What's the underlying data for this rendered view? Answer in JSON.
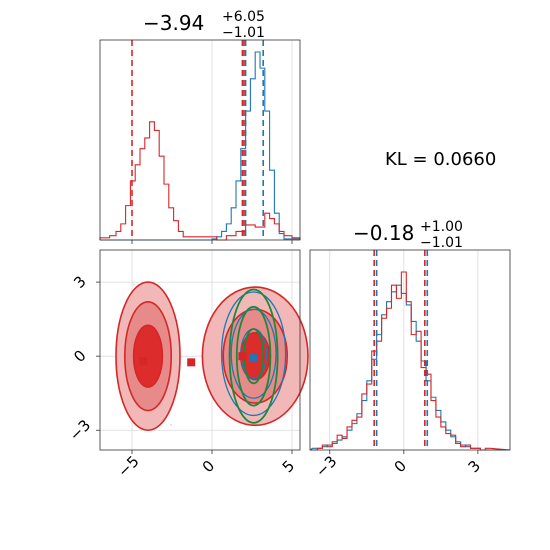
{
  "colors": {
    "blue": "#1f77b4",
    "red": "#d62728",
    "green": "#1a8a3a",
    "red_fill_light": "#f2b8b8",
    "red_fill_mid": "#e78a8a",
    "red_fill_dark": "#dd2c2c"
  },
  "kl_label": "KL = 0.0660",
  "chart_data": [
    {
      "type": "histogram",
      "panel": "top-left",
      "title_main": "−3.94",
      "title_sup": "+6.05",
      "title_sub": "−1.01",
      "xlim": [
        -7,
        5.5
      ],
      "xticks": [
        -5,
        0,
        5
      ],
      "grid": true,
      "series": [
        {
          "color": "blue",
          "counts_x": [
            -7,
            0.0,
            0.3,
            0.6,
            0.9,
            1.2,
            1.5,
            1.8,
            2.1,
            2.4,
            2.7,
            3.0,
            3.3,
            3.6,
            3.9,
            4.2,
            4.5
          ],
          "counts": [
            0,
            1,
            3,
            8,
            15,
            30,
            55,
            85,
            120,
            150,
            175,
            160,
            120,
            65,
            25,
            6,
            1
          ]
        },
        {
          "color": "red",
          "counts_x": [
            -7,
            -6.4,
            -6.0,
            -5.7,
            -5.4,
            -5.1,
            -4.8,
            -4.5,
            -4.2,
            -3.9,
            -3.6,
            -3.3,
            -3.0,
            -2.7,
            -2.4,
            -2.1,
            -1.8,
            0.3,
            0.9,
            1.5,
            2.1,
            2.7,
            3.3,
            3.6,
            3.9,
            4.2,
            4.5,
            5.0
          ],
          "counts": [
            2,
            4,
            8,
            15,
            32,
            55,
            70,
            85,
            95,
            110,
            102,
            78,
            52,
            30,
            18,
            8,
            3,
            0,
            4,
            8,
            14,
            12,
            25,
            20,
            15,
            8,
            4,
            2
          ]
        }
      ],
      "lines": [
        {
          "color": "red",
          "x": -5.0
        },
        {
          "color": "red",
          "x": 1.9
        },
        {
          "color": "red",
          "x": 2.0
        },
        {
          "color": "blue",
          "x": 2.1
        },
        {
          "color": "blue",
          "x": 3.2
        }
      ]
    },
    {
      "type": "histogram",
      "panel": "bottom-right",
      "title_main": "−0.18",
      "title_sup": "+1.00",
      "title_sub": "−1.01",
      "xlim": [
        -3.8,
        4.3
      ],
      "xticks": [
        -3,
        0,
        3
      ],
      "grid": true,
      "series": [
        {
          "color": "blue",
          "centers": [
            -3.6,
            -3.4,
            -3.2,
            -3.0,
            -2.8,
            -2.6,
            -2.4,
            -2.2,
            -2.0,
            -1.8,
            -1.6,
            -1.4,
            -1.2,
            -1.0,
            -0.8,
            -0.6,
            -0.4,
            -0.2,
            0.0,
            0.2,
            0.4,
            0.6,
            0.8,
            1.0,
            1.2,
            1.4,
            1.6,
            1.8,
            2.0,
            2.2,
            2.4,
            2.6,
            2.8,
            3.0,
            3.2,
            3.4
          ],
          "counts": [
            1,
            1,
            2,
            3,
            4,
            6,
            8,
            12,
            16,
            22,
            30,
            42,
            55,
            70,
            82,
            90,
            96,
            100,
            95,
            88,
            78,
            66,
            54,
            42,
            32,
            24,
            17,
            12,
            8,
            5,
            3,
            2,
            1,
            1,
            0,
            0
          ]
        },
        {
          "color": "red",
          "centers": [
            -3.6,
            -3.4,
            -3.2,
            -3.0,
            -2.8,
            -2.6,
            -2.4,
            -2.2,
            -2.0,
            -1.8,
            -1.6,
            -1.4,
            -1.2,
            -1.0,
            -0.8,
            -0.6,
            -0.4,
            -0.2,
            0.0,
            0.2,
            0.4,
            0.6,
            0.8,
            1.0,
            1.2,
            1.4,
            1.6,
            1.8,
            2.0,
            2.2,
            2.4,
            2.6,
            2.8,
            3.0,
            3.2,
            3.4
          ],
          "counts": [
            0,
            1,
            3,
            2,
            5,
            9,
            7,
            14,
            18,
            20,
            34,
            40,
            60,
            66,
            80,
            86,
            100,
            92,
            108,
            90,
            70,
            72,
            50,
            46,
            30,
            20,
            14,
            10,
            9,
            4,
            2,
            3,
            1,
            1,
            0,
            1
          ]
        }
      ],
      "lines": [
        {
          "color": "red",
          "x": -1.2
        },
        {
          "color": "blue",
          "x": -1.1
        },
        {
          "color": "red",
          "x": 0.85
        },
        {
          "color": "blue",
          "x": 0.95
        }
      ]
    },
    {
      "type": "scatter",
      "panel": "bottom-left",
      "xlim": [
        -7,
        5.5
      ],
      "ylim": [
        -3.8,
        4.3
      ],
      "xticks": [
        -5,
        0,
        5
      ],
      "yticks": [
        -3,
        0,
        3
      ],
      "grid": true,
      "red_filled_contours": [
        {
          "cx": -4.0,
          "cy": 0.0,
          "rx": [
            2.0,
            1.45,
            0.9
          ],
          "ry": [
            3.0,
            2.2,
            1.25
          ]
        },
        {
          "cx": 2.7,
          "cy": 0.0,
          "rx": [
            3.3,
            2.0,
            0.9
          ],
          "ry": [
            2.8,
            1.9,
            0.95
          ]
        }
      ],
      "blue_contours": {
        "cx": 2.6,
        "cy": 0.1,
        "rx": [
          2.0,
          1.4,
          0.8
        ],
        "ry": [
          2.5,
          1.8,
          1.0
        ]
      },
      "green_contours": {
        "cx": 2.6,
        "cy": 0.0,
        "rx": [
          1.5,
          1.05,
          0.6
        ],
        "ry": [
          2.7,
          2.0,
          1.1
        ]
      },
      "markers": [
        {
          "color": "red",
          "x": -4.3,
          "y": -0.2
        },
        {
          "color": "red",
          "x": -1.3,
          "y": -0.25
        },
        {
          "color": "red",
          "x": 1.9,
          "y": 0.0
        },
        {
          "color": "blue",
          "x": 2.6,
          "y": -0.08
        }
      ]
    }
  ]
}
